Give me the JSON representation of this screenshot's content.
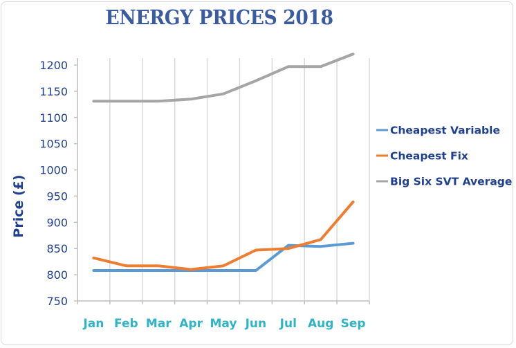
{
  "chart_data": {
    "type": "line",
    "title": "ENERGY PRICES 2018",
    "xlabel": "",
    "ylabel": "Price (£)",
    "categories": [
      "Jan",
      "Feb",
      "Mar",
      "Apr",
      "May",
      "Jun",
      "Jul",
      "Aug",
      "Sep"
    ],
    "ylim": [
      750,
      1200
    ],
    "yticks": [
      750,
      800,
      850,
      900,
      950,
      1000,
      1050,
      1100,
      1150,
      1200
    ],
    "grid": "vertical",
    "legend": "right",
    "series": [
      {
        "name": "Cheapest Variable",
        "color": "#5b9bd5",
        "values": [
          808,
          808,
          808,
          808,
          808,
          808,
          856,
          854,
          860
        ]
      },
      {
        "name": "Cheapest Fix",
        "color": "#ed7d31",
        "values": [
          832,
          817,
          817,
          810,
          817,
          847,
          850,
          867,
          939
        ]
      },
      {
        "name": "Big Six SVT Average",
        "color": "#a5a5a5",
        "values": [
          1131,
          1131,
          1131,
          1135,
          1145,
          1170,
          1197,
          1197,
          1221
        ]
      }
    ]
  }
}
